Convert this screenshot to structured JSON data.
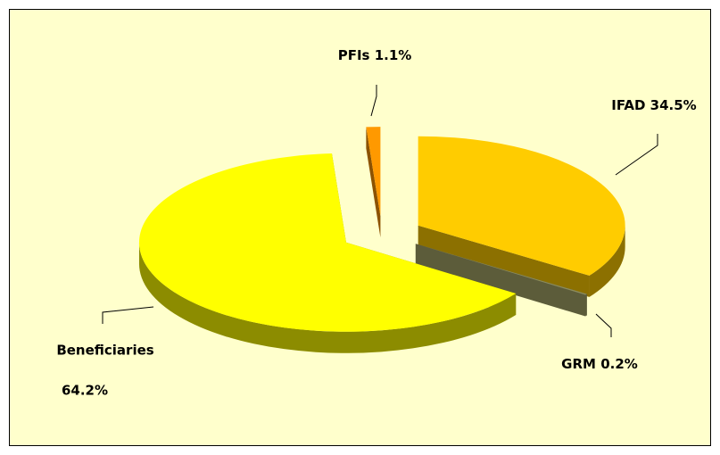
{
  "chart_data": {
    "type": "pie",
    "categories": [
      "IFAD",
      "GRM",
      "Beneficiaries",
      "PFIs"
    ],
    "values": [
      34.5,
      0.2,
      64.2,
      1.1
    ],
    "value_labels": [
      "34.5%",
      "0.2%",
      "64.2%",
      "1.1%"
    ],
    "colors": [
      "#ffcc00",
      "#8c8c5c",
      "#ffff00",
      "#ff9900"
    ],
    "side_colors": [
      "#8c7000",
      "#5c5c3a",
      "#8c8c00",
      "#8c5200"
    ]
  }
}
